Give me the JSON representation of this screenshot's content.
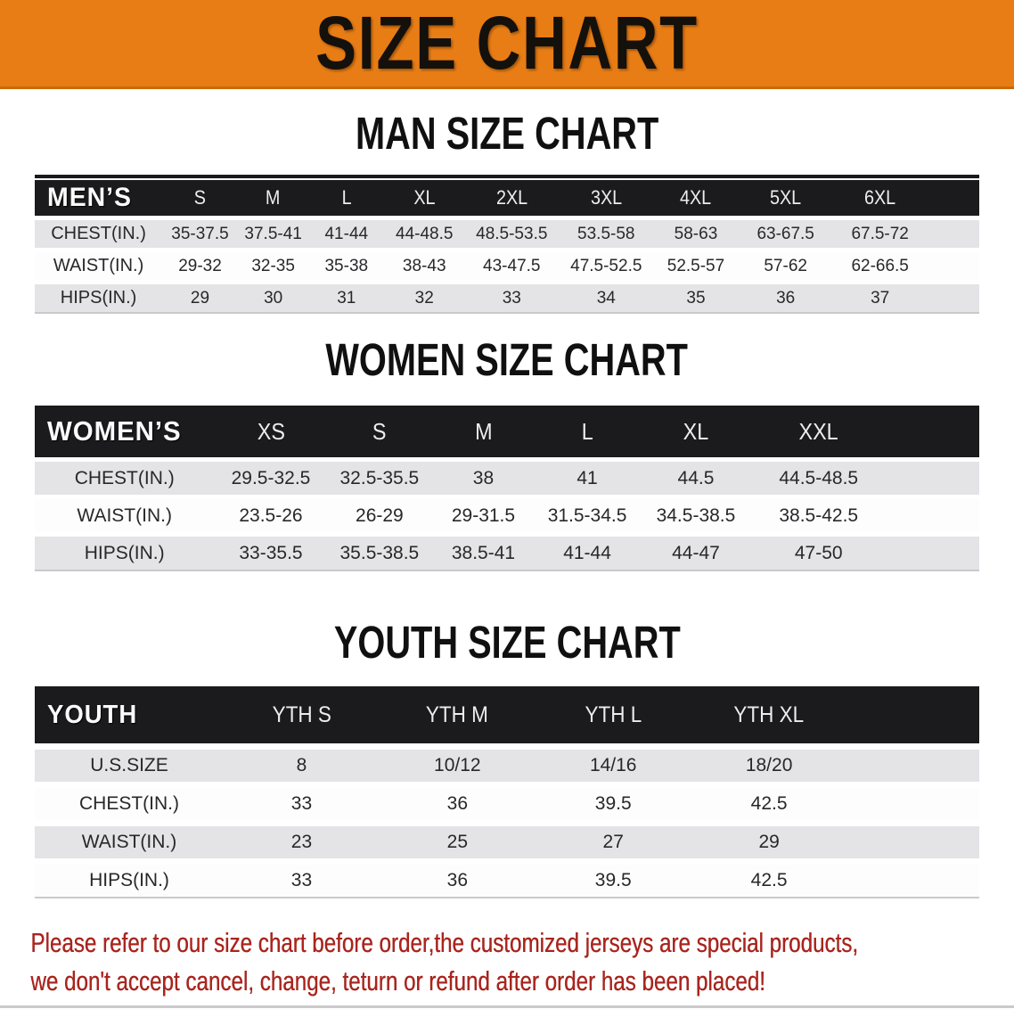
{
  "banner": {
    "title": "SIZE CHART"
  },
  "sections": [
    {
      "heading": "MAN SIZE CHART",
      "table": {
        "corner_label": "MEN’S",
        "columns": [
          "S",
          "M",
          "L",
          "XL",
          "2XL",
          "3XL",
          "4XL",
          "5XL",
          "6XL"
        ],
        "rows": [
          {
            "label": "CHEST(IN.)",
            "values": [
              "35-37.5",
              "37.5-41",
              "41-44",
              "44-48.5",
              "48.5-53.5",
              "53.5-58",
              "58-63",
              "63-67.5",
              "67.5-72"
            ]
          },
          {
            "label": "WAIST(IN.)",
            "values": [
              "29-32",
              "32-35",
              "35-38",
              "38-43",
              "43-47.5",
              "47.5-52.5",
              "52.5-57",
              "57-62",
              "62-66.5"
            ]
          },
          {
            "label": "HIPS(IN.)",
            "values": [
              "29",
              "30",
              "31",
              "32",
              "33",
              "34",
              "35",
              "36",
              "37"
            ]
          }
        ]
      }
    },
    {
      "heading": "WOMEN SIZE CHART",
      "table": {
        "corner_label": "WOMEN’S",
        "columns": [
          "XS",
          "S",
          "M",
          "L",
          "XL",
          "XXL"
        ],
        "rows": [
          {
            "label": "CHEST(IN.)",
            "values": [
              "29.5-32.5",
              "32.5-35.5",
              "38",
              "41",
              "44.5",
              "44.5-48.5"
            ]
          },
          {
            "label": "WAIST(IN.)",
            "values": [
              "23.5-26",
              "26-29",
              "29-31.5",
              "31.5-34.5",
              "34.5-38.5",
              "38.5-42.5"
            ]
          },
          {
            "label": "HIPS(IN.)",
            "values": [
              "33-35.5",
              "35.5-38.5",
              "38.5-41",
              "41-44",
              "44-47",
              "47-50"
            ]
          }
        ]
      }
    },
    {
      "heading": "YOUTH SIZE CHART",
      "table": {
        "corner_label": "YOUTH",
        "columns": [
          "YTH S",
          "YTH M",
          "YTH L",
          "YTH XL"
        ],
        "rows": [
          {
            "label": "U.S.SIZE",
            "values": [
              "8",
              "10/12",
              "14/16",
              "18/20"
            ]
          },
          {
            "label": "CHEST(IN.)",
            "values": [
              "33",
              "36",
              "39.5",
              "42.5"
            ]
          },
          {
            "label": "WAIST(IN.)",
            "values": [
              "23",
              "25",
              "27",
              "29"
            ]
          },
          {
            "label": "HIPS(IN.)",
            "values": [
              "33",
              "36",
              "39.5",
              "42.5"
            ]
          }
        ]
      }
    }
  ],
  "footer": {
    "line1": "Please refer to our size chart before order,the customized jerseys are special products,",
    "line2": "we don't accept cancel, change, teturn or refund after order has been placed!"
  },
  "colors": {
    "banner_orange": "#e87d15",
    "header_black": "#1b1a1c",
    "row_gray": "#e4e3e6",
    "row_white": "#fdfdfe",
    "footer_red": "#a8251e"
  }
}
